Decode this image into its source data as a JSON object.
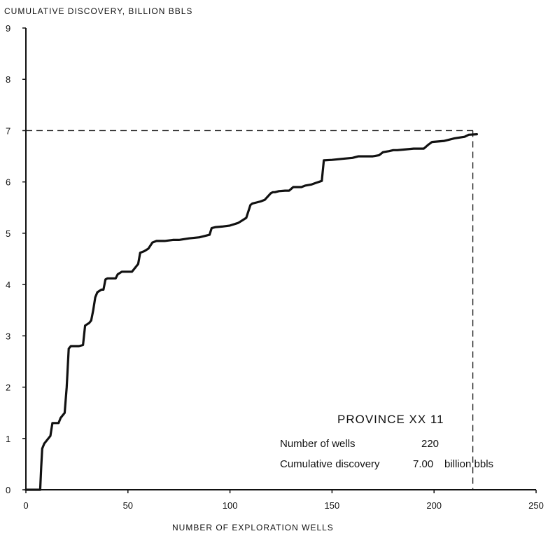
{
  "chart_data": {
    "type": "line",
    "title": "",
    "ylabel": "CUMULATIVE DISCOVERY, BILLION BBLS",
    "xlabel": "NUMBER OF EXPLORATION WELLS",
    "xlim": [
      0,
      250
    ],
    "ylim": [
      0,
      9
    ],
    "xticks": [
      0,
      50,
      100,
      150,
      200,
      250
    ],
    "yticks": [
      0,
      1,
      2,
      3,
      4,
      5,
      6,
      7,
      8,
      9
    ],
    "grid": false,
    "reference_lines": {
      "y": 7.0,
      "x": 219
    },
    "annotation": {
      "title": "PROVINCE XX 11",
      "rows": [
        {
          "label": "Number of wells",
          "value": "220"
        },
        {
          "label": "Cumulative discovery",
          "value": "7.00",
          "unit": "billion bbls"
        }
      ]
    },
    "series": [
      {
        "x": [
          0,
          7,
          7.5,
          8,
          9,
          10,
          12,
          13,
          16,
          17,
          19,
          20,
          21,
          22,
          26,
          28,
          29,
          31,
          32,
          33,
          34,
          35,
          37,
          38,
          39,
          40,
          44,
          45,
          47,
          48,
          52,
          55,
          56,
          58,
          60,
          62,
          64,
          66,
          68,
          72,
          75,
          80,
          85,
          90,
          91,
          93,
          96,
          100,
          104,
          106,
          108,
          110,
          111,
          113,
          115,
          117,
          120,
          121,
          122,
          124,
          127,
          129,
          131,
          135,
          137,
          140,
          142,
          145,
          146,
          150,
          155,
          160,
          163,
          165,
          170,
          173,
          175,
          178,
          180,
          182,
          185,
          190,
          195,
          197,
          199,
          205,
          210,
          215,
          217,
          221
        ],
        "y": [
          0,
          0,
          0.45,
          0.8,
          0.9,
          0.95,
          1.05,
          1.3,
          1.3,
          1.4,
          1.5,
          2.0,
          2.75,
          2.8,
          2.8,
          2.82,
          3.2,
          3.25,
          3.3,
          3.5,
          3.75,
          3.85,
          3.9,
          3.9,
          4.1,
          4.12,
          4.12,
          4.2,
          4.25,
          4.25,
          4.25,
          4.4,
          4.62,
          4.65,
          4.7,
          4.82,
          4.85,
          4.85,
          4.85,
          4.87,
          4.87,
          4.9,
          4.92,
          4.97,
          5.1,
          5.12,
          5.13,
          5.15,
          5.2,
          5.25,
          5.3,
          5.55,
          5.58,
          5.6,
          5.62,
          5.65,
          5.78,
          5.8,
          5.8,
          5.82,
          5.83,
          5.83,
          5.9,
          5.9,
          5.93,
          5.95,
          5.98,
          6.02,
          6.42,
          6.43,
          6.45,
          6.47,
          6.5,
          6.5,
          6.5,
          6.52,
          6.58,
          6.6,
          6.62,
          6.62,
          6.63,
          6.65,
          6.65,
          6.72,
          6.78,
          6.8,
          6.85,
          6.88,
          6.92,
          6.93
        ]
      }
    ]
  }
}
